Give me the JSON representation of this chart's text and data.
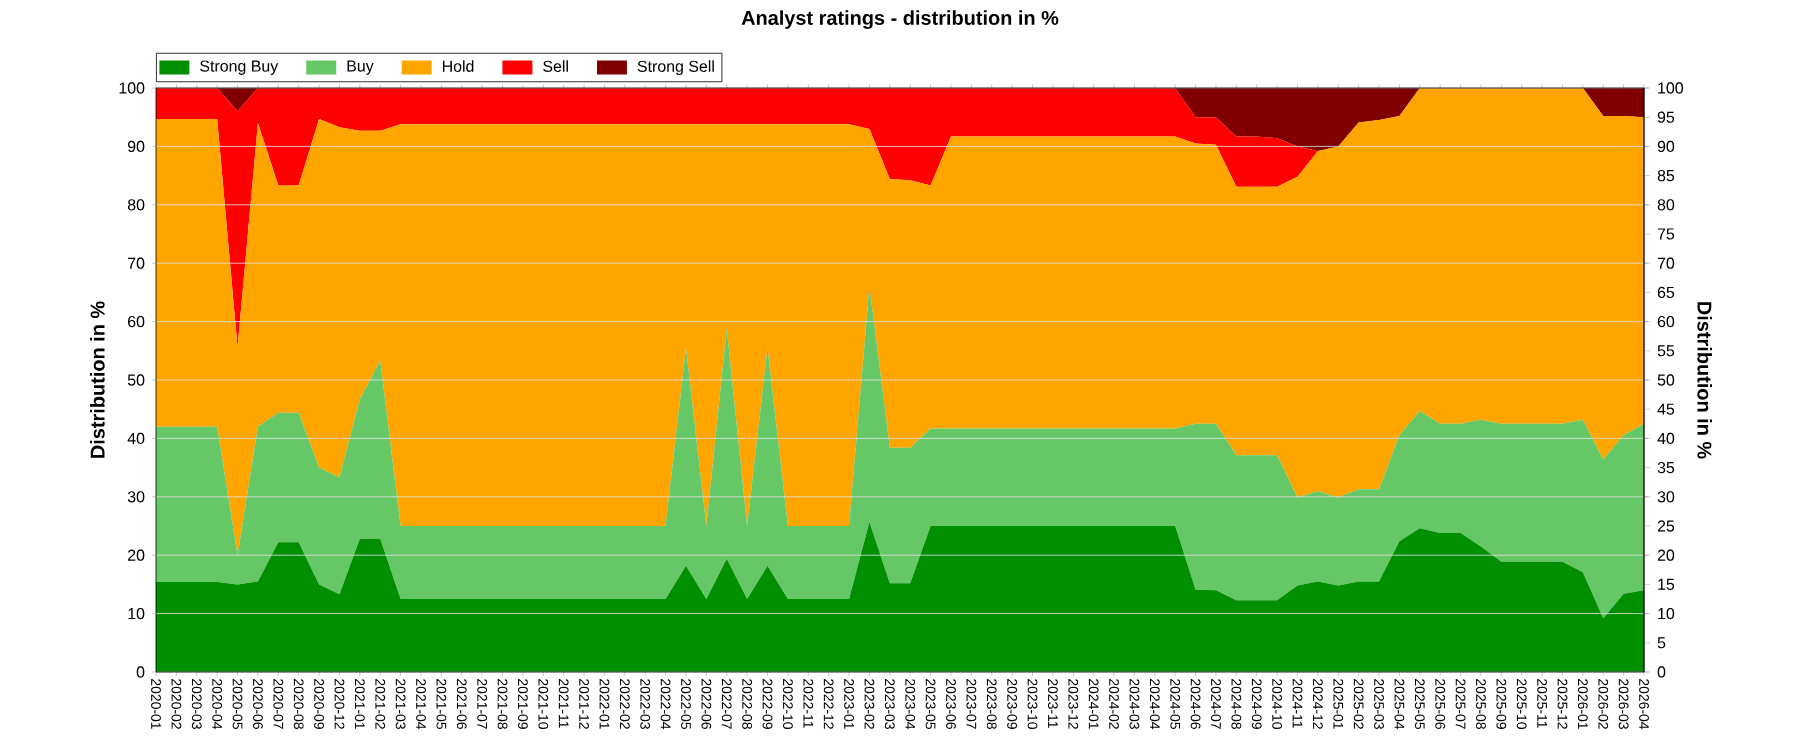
{
  "chart_data": {
    "type": "area",
    "stacked": true,
    "title": "Analyst ratings - distribution in %",
    "ylabel": "Distribution in %",
    "y2label": "Distribution in %",
    "categories": [
      "2020-01",
      "2020-02",
      "2020-03",
      "2020-04",
      "2020-05",
      "2020-06",
      "2020-07",
      "2020-08",
      "2020-09",
      "2020-12",
      "2021-01",
      "2021-02",
      "2021-03",
      "2021-04",
      "2021-05",
      "2021-06",
      "2021-07",
      "2021-08",
      "2021-09",
      "2021-10",
      "2021-11",
      "2021-12",
      "2022-01",
      "2022-02",
      "2022-03",
      "2022-04",
      "2022-05",
      "2022-06",
      "2022-07",
      "2022-08",
      "2022-09",
      "2022-10",
      "2022-11",
      "2022-12",
      "2023-01",
      "2023-02",
      "2023-03",
      "2023-04",
      "2023-05",
      "2023-06",
      "2023-07",
      "2023-08",
      "2023-09",
      "2023-10",
      "2023-11",
      "2023-12",
      "2024-01",
      "2024-02",
      "2024-03",
      "2024-04",
      "2024-05",
      "2024-06",
      "2024-07",
      "2024-08",
      "2024-09",
      "2024-10",
      "2024-11",
      "2024-12",
      "2025-01",
      "2025-02",
      "2025-03",
      "2025-04",
      "2025-05",
      "2025-06",
      "2025-07",
      "2025-08",
      "2025-09",
      "2025-10",
      "2025-11",
      "2025-12",
      "2026-01",
      "2026-02",
      "2026-03",
      "2026-04"
    ],
    "series": [
      {
        "name": "Strong Buy",
        "color": "#008f00",
        "values": [
          15.4,
          15.4,
          15.4,
          15.4,
          15,
          15.5,
          22.2,
          22.2,
          15,
          13.3,
          22.8,
          22.8,
          12.5,
          12.5,
          12.5,
          12.5,
          12.5,
          12.5,
          12.5,
          12.5,
          12.5,
          12.5,
          12.5,
          12.5,
          12.5,
          12.5,
          18.2,
          12.5,
          19.4,
          12.5,
          18.2,
          12.5,
          12.5,
          12.5,
          12.5,
          25.7,
          15.2,
          15.2,
          25,
          25,
          25,
          25,
          25,
          25,
          25,
          25,
          25,
          25,
          25,
          25,
          25,
          14.1,
          14,
          12.3,
          12.3,
          12.3,
          14.8,
          15.5,
          14.8,
          15.5,
          15.5,
          22.4,
          24.6,
          23.8,
          23.8,
          21.5,
          18.9,
          18.9,
          18.9,
          18.9,
          17.1,
          9.2,
          13.4,
          14
        ]
      },
      {
        "name": "Buy",
        "color": "#66c766",
        "values": [
          26.6,
          26.6,
          26.6,
          26.6,
          5,
          26.5,
          22.2,
          22.2,
          20,
          20,
          23.9,
          30.5,
          12.5,
          12.5,
          12.5,
          12.5,
          12.5,
          12.5,
          12.5,
          12.5,
          12.5,
          12.5,
          12.5,
          12.5,
          12.5,
          12.5,
          37.3,
          12.5,
          39.4,
          12.5,
          37.3,
          12.5,
          12.5,
          12.5,
          12.5,
          40.3,
          23.2,
          23.2,
          16.7,
          16.7,
          16.7,
          16.7,
          16.7,
          16.7,
          16.7,
          16.7,
          16.7,
          16.7,
          16.7,
          16.7,
          16.7,
          28.4,
          28.5,
          24.8,
          24.8,
          24.8,
          15.1,
          15.5,
          15.1,
          15.8,
          15.8,
          18.2,
          20.1,
          18.7,
          18.7,
          21.7,
          23.6,
          23.6,
          23.6,
          23.6,
          26.1,
          27.2,
          27.2,
          28.5
        ]
      },
      {
        "name": "Hold",
        "color": "#ffa500",
        "values": [
          52.7,
          52.7,
          52.7,
          52.7,
          35.6,
          52,
          38.9,
          38.9,
          59.7,
          60,
          46,
          39.4,
          68.8,
          68.8,
          68.8,
          68.8,
          68.8,
          68.8,
          68.8,
          68.8,
          68.8,
          68.8,
          68.8,
          68.8,
          68.8,
          68.8,
          38.3,
          68.8,
          35,
          68.8,
          38.3,
          68.8,
          68.8,
          68.8,
          68.8,
          27,
          46,
          45.8,
          41.6,
          50,
          50,
          50,
          50,
          50,
          50,
          50,
          50,
          50,
          50,
          50,
          50,
          48,
          47.8,
          46,
          46,
          46,
          54.9,
          58.2,
          60.1,
          62.8,
          63.2,
          54.6,
          55.3,
          57.5,
          57.5,
          56.8,
          57.5,
          57.5,
          57.5,
          57.5,
          56.8,
          58.8,
          54.6,
          52.5
        ]
      },
      {
        "name": "Sell",
        "color": "#ff0000",
        "values": [
          5.3,
          5.3,
          5.3,
          5.3,
          40.4,
          6,
          16.7,
          16.7,
          5.3,
          6.7,
          7.3,
          7.3,
          6.2,
          6.2,
          6.2,
          6.2,
          6.2,
          6.2,
          6.2,
          6.2,
          6.2,
          6.2,
          6.2,
          6.2,
          6.2,
          6.2,
          6.2,
          6.2,
          6.2,
          6.2,
          6.2,
          6.2,
          6.2,
          6.2,
          6.2,
          7,
          15.6,
          15.8,
          16.7,
          8.3,
          8.3,
          8.3,
          8.3,
          8.3,
          8.3,
          8.3,
          8.3,
          8.3,
          8.3,
          8.3,
          8.3,
          4.5,
          4.7,
          8.6,
          8.6,
          8.3,
          5.2,
          0,
          0,
          0,
          0,
          0,
          0,
          0,
          0,
          0,
          0,
          0,
          0,
          0,
          0,
          0,
          0,
          0
        ]
      },
      {
        "name": "Strong Sell",
        "color": "#800000",
        "values": [
          0,
          0,
          0,
          0,
          4,
          0,
          0,
          0,
          0,
          0,
          0,
          0,
          0,
          0,
          0,
          0,
          0,
          0,
          0,
          0,
          0,
          0,
          0,
          0,
          0,
          0,
          0,
          0,
          0,
          0,
          0,
          0,
          0,
          0,
          0,
          0,
          0,
          0,
          0,
          0,
          0,
          0,
          0,
          0,
          0,
          0,
          0,
          0,
          0,
          0,
          0,
          5,
          5,
          8.3,
          8.3,
          8.6,
          10,
          10.8,
          10,
          5.9,
          5.5,
          4.8,
          0,
          0,
          0,
          0,
          0,
          0,
          0,
          0,
          0,
          4.8,
          4.8,
          5
        ]
      }
    ],
    "ylim": [
      0,
      100
    ],
    "yticks": [
      0,
      10,
      20,
      30,
      40,
      50,
      60,
      70,
      80,
      90,
      100
    ],
    "y2lim": [
      0,
      100
    ],
    "y2ticks": [
      0,
      5,
      10,
      15,
      20,
      25,
      30,
      35,
      40,
      45,
      50,
      55,
      60,
      65,
      70,
      75,
      80,
      85,
      90,
      95,
      100
    ],
    "grid": "y",
    "legend": "top left"
  }
}
